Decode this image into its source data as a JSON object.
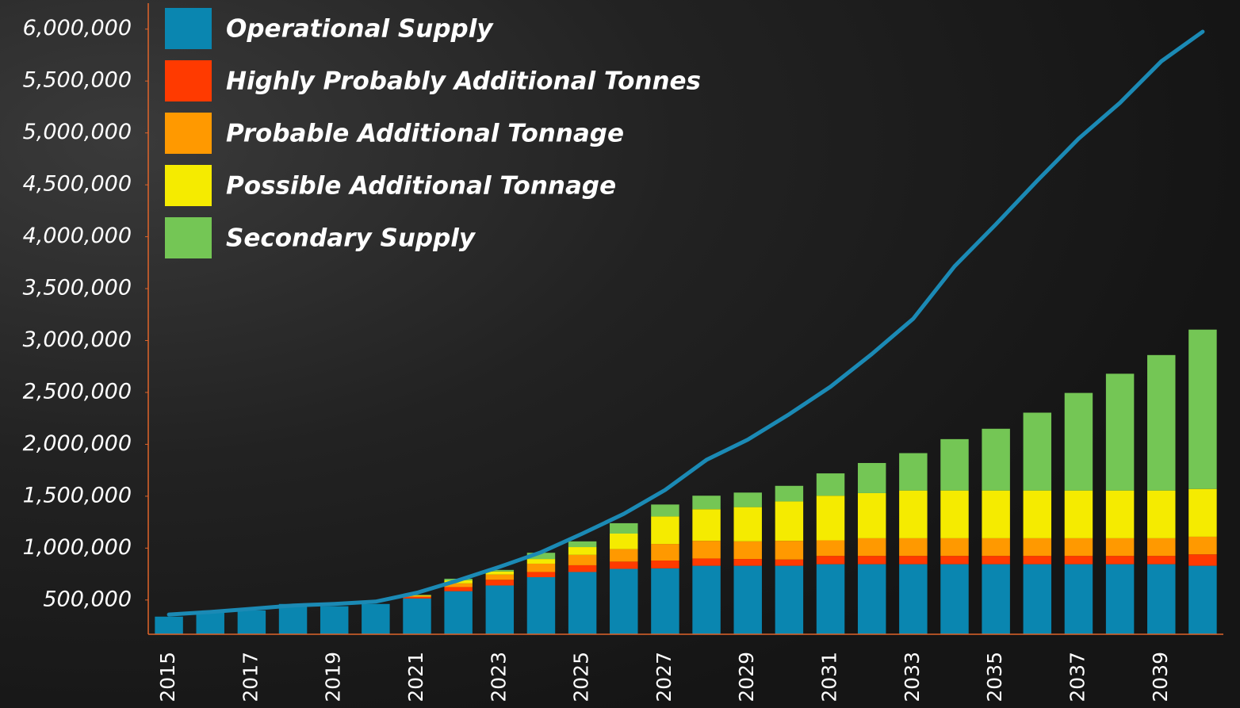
{
  "chart_data": {
    "type": "bar",
    "stacked": true,
    "categories": [
      "2015",
      null,
      "2017",
      null,
      "2019",
      null,
      "2021",
      null,
      "2023",
      null,
      "2025",
      null,
      "2027",
      null,
      "2029",
      null,
      "2031",
      null,
      "2033",
      null,
      "2035",
      null,
      "2037",
      null,
      "2039",
      null
    ],
    "series": [
      {
        "name": "Operational Supply",
        "color": "#0a86b0",
        "values": [
          340000,
          380000,
          400000,
          462000,
          440000,
          462000,
          515000,
          585000,
          640000,
          720000,
          770000,
          800000,
          805000,
          830000,
          830000,
          830000,
          845000,
          845000,
          845000,
          845000,
          845000,
          845000,
          845000,
          845000,
          845000,
          830000
        ]
      },
      {
        "name": "Highly Probably Additional Tonnes",
        "color": "#ff3a00",
        "values": [
          0,
          0,
          0,
          0,
          0,
          0,
          15000,
          40000,
          55000,
          50000,
          65000,
          70000,
          75000,
          70000,
          65000,
          60000,
          80000,
          80000,
          80000,
          80000,
          80000,
          80000,
          80000,
          80000,
          80000,
          110000
        ]
      },
      {
        "name": "Probable Additional Tonnage",
        "color": "#ff9900",
        "values": [
          0,
          0,
          0,
          0,
          0,
          0,
          10000,
          35000,
          50000,
          80000,
          100000,
          120000,
          160000,
          170000,
          170000,
          180000,
          150000,
          170000,
          170000,
          170000,
          170000,
          170000,
          170000,
          170000,
          170000,
          170000
        ]
      },
      {
        "name": "Possible Additional Tonnage",
        "color": "#f5eb00",
        "values": [
          0,
          0,
          0,
          0,
          0,
          0,
          5000,
          30000,
          30000,
          45000,
          75000,
          150000,
          265000,
          305000,
          330000,
          380000,
          430000,
          435000,
          460000,
          460000,
          460000,
          460000,
          460000,
          460000,
          460000,
          460000
        ]
      },
      {
        "name": "Secondary Supply",
        "color": "#74c655",
        "values": [
          0,
          0,
          0,
          0,
          0,
          0,
          5000,
          15000,
          15000,
          60000,
          55000,
          100000,
          115000,
          130000,
          140000,
          150000,
          215000,
          290000,
          360000,
          495000,
          595000,
          750000,
          940000,
          1125000,
          1305000,
          1535000
        ]
      }
    ],
    "line": {
      "color": "#1b8ab5",
      "values": [
        360000,
        385000,
        415000,
        447000,
        462000,
        485000,
        570000,
        690000,
        820000,
        960000,
        1140000,
        1330000,
        1560000,
        1850000,
        2045000,
        2290000,
        2555000,
        2870000,
        3210000,
        3715000,
        4120000,
        4540000,
        4945000,
        5290000,
        5690000,
        5975000
      ]
    },
    "ylim": [
      170000,
      6250000
    ],
    "yticks": [
      {
        "value": 500000,
        "label": "500,000"
      },
      {
        "value": 1000000,
        "label": "1,000,000"
      },
      {
        "value": 1500000,
        "label": "1,500,000"
      },
      {
        "value": 2000000,
        "label": "2,000,000"
      },
      {
        "value": 2500000,
        "label": "2,500,000"
      },
      {
        "value": 3000000,
        "label": "3,000,000"
      },
      {
        "value": 3500000,
        "label": "3,500,000"
      },
      {
        "value": 4000000,
        "label": "4,000,000"
      },
      {
        "value": 4500000,
        "label": "4,500,000"
      },
      {
        "value": 5000000,
        "label": "5,000,000"
      },
      {
        "value": 5500000,
        "label": "5,500,000"
      },
      {
        "value": 6000000,
        "label": "6,000,000"
      }
    ],
    "grid": false,
    "legend": "top-left"
  }
}
